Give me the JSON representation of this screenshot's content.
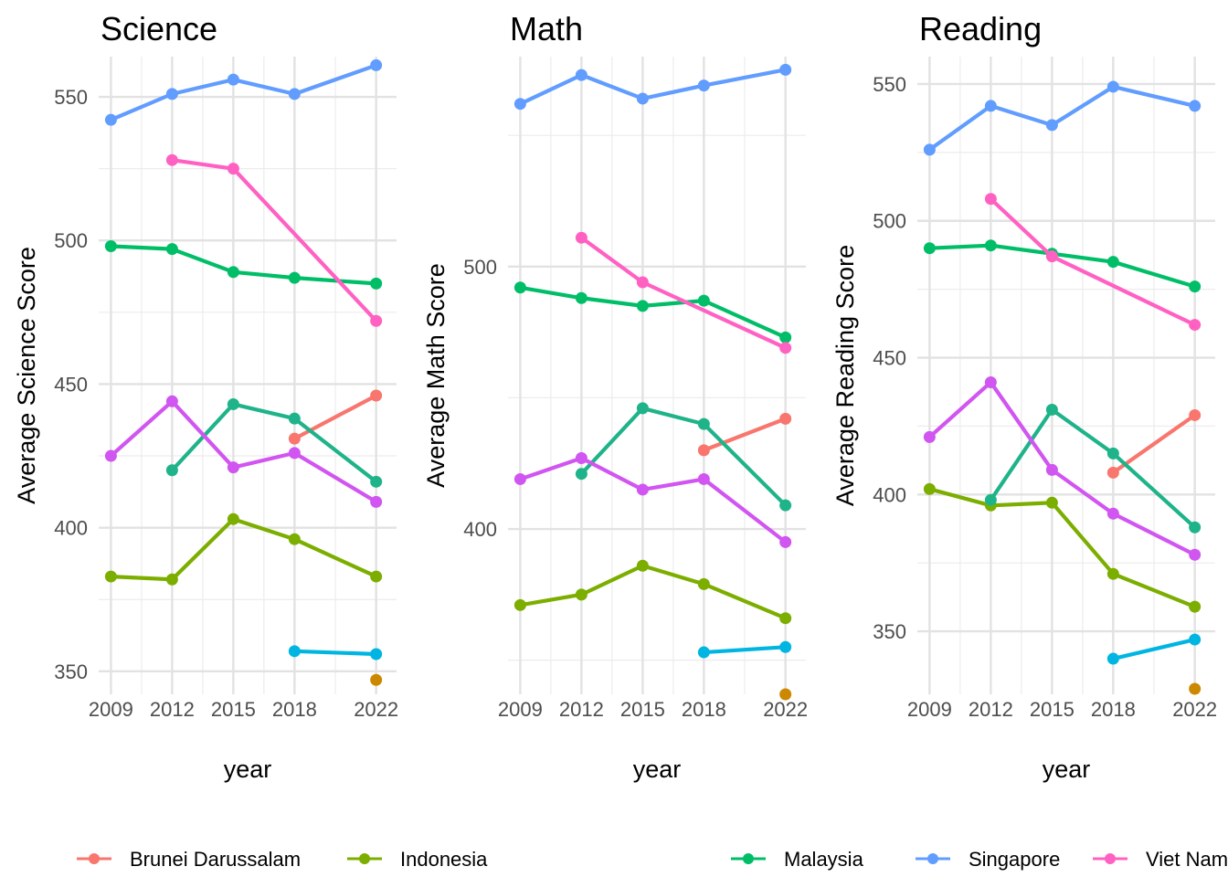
{
  "chart_data": {
    "type": "line",
    "legend_position": "bottom",
    "grid": true,
    "x_ticks": [
      2009,
      2012,
      2015,
      2018,
      2022
    ],
    "countries": [
      {
        "name": "Brunei Darussalam",
        "color": "#F8766D"
      },
      {
        "name": "Indonesia",
        "color": "#7CAE00"
      },
      {
        "name": "Malaysia",
        "color": "#00BE67"
      },
      {
        "name": "Singapore",
        "color": "#619CFF"
      },
      {
        "name": "Viet Nam",
        "color": "#FF61C3"
      }
    ],
    "panels": [
      {
        "title": "Science",
        "xlabel": "year",
        "ylabel": "Average Science Score",
        "xlim": [
          2008.4,
          2023.0
        ],
        "ylim": [
          342,
          564
        ],
        "y_ticks": [
          350,
          400,
          450,
          500,
          550
        ],
        "y_minor": [
          375,
          425,
          475,
          525
        ],
        "series": [
          {
            "color": "#F8766D",
            "x": [
              2018,
              2022
            ],
            "y": [
              431,
              446
            ]
          },
          {
            "color": "#7CAE00",
            "x": [
              2009,
              2012,
              2015,
              2018,
              2022
            ],
            "y": [
              383,
              382,
              403,
              396,
              383
            ]
          },
          {
            "color": "#00BE67",
            "x": [
              2009,
              2012,
              2015,
              2018,
              2022
            ],
            "y": [
              498,
              497,
              489,
              487,
              485
            ]
          },
          {
            "color": "#1FB38A",
            "x": [
              2012,
              2015,
              2018,
              2022
            ],
            "y": [
              420,
              443,
              438,
              416
            ]
          },
          {
            "color": "#00B5E2",
            "x": [
              2018,
              2022
            ],
            "y": [
              357,
              356
            ]
          },
          {
            "color": "#CC8800",
            "x": [
              2022
            ],
            "y": [
              347
            ]
          },
          {
            "color": "#619CFF",
            "x": [
              2009,
              2012,
              2015,
              2018,
              2022
            ],
            "y": [
              542,
              551,
              556,
              551,
              561
            ]
          },
          {
            "color": "#FF61C3",
            "x": [
              2012,
              2015,
              2022
            ],
            "y": [
              528,
              525,
              472
            ]
          },
          {
            "color": "#D155F0",
            "x": [
              2009,
              2012,
              2015,
              2018,
              2022
            ],
            "y": [
              425,
              444,
              421,
              426,
              409
            ]
          }
        ]
      },
      {
        "title": "Math",
        "xlabel": "year",
        "ylabel": "Average Math Score",
        "xlim": [
          2008.4,
          2023.0
        ],
        "ylim": [
          337,
          580
        ],
        "y_ticks": [
          400,
          500
        ],
        "y_minor": [
          350,
          450,
          550
        ],
        "series": [
          {
            "color": "#F8766D",
            "x": [
              2018,
              2022
            ],
            "y": [
              430,
              442
            ]
          },
          {
            "color": "#7CAE00",
            "x": [
              2009,
              2012,
              2015,
              2018,
              2022
            ],
            "y": [
              371,
              375,
              386,
              379,
              366
            ]
          },
          {
            "color": "#00BE67",
            "x": [
              2009,
              2012,
              2015,
              2018,
              2022
            ],
            "y": [
              492,
              488,
              485,
              487,
              473
            ]
          },
          {
            "color": "#1FB38A",
            "x": [
              2012,
              2015,
              2018,
              2022
            ],
            "y": [
              421,
              446,
              440,
              409
            ]
          },
          {
            "color": "#00B5E2",
            "x": [
              2018,
              2022
            ],
            "y": [
              353,
              355
            ]
          },
          {
            "color": "#CC8800",
            "x": [
              2022
            ],
            "y": [
              337
            ]
          },
          {
            "color": "#619CFF",
            "x": [
              2009,
              2012,
              2015,
              2018,
              2022
            ],
            "y": [
              562,
              573,
              564,
              569,
              575
            ]
          },
          {
            "color": "#FF61C3",
            "x": [
              2012,
              2015,
              2022
            ],
            "y": [
              511,
              494,
              469
            ]
          },
          {
            "color": "#D155F0",
            "x": [
              2009,
              2012,
              2015,
              2018,
              2022
            ],
            "y": [
              419,
              427,
              415,
              419,
              395
            ]
          }
        ]
      },
      {
        "title": "Reading",
        "xlabel": "year",
        "ylabel": "Average Reading Score",
        "xlim": [
          2008.4,
          2023.0
        ],
        "ylim": [
          327,
          560
        ],
        "y_ticks": [
          350,
          400,
          450,
          500,
          550
        ],
        "y_minor": [
          375,
          425,
          475,
          525
        ],
        "series": [
          {
            "color": "#F8766D",
            "x": [
              2018,
              2022
            ],
            "y": [
              408,
              429
            ]
          },
          {
            "color": "#7CAE00",
            "x": [
              2009,
              2012,
              2015,
              2018,
              2022
            ],
            "y": [
              402,
              396,
              397,
              371,
              359
            ]
          },
          {
            "color": "#00BE67",
            "x": [
              2009,
              2012,
              2015,
              2018,
              2022
            ],
            "y": [
              490,
              491,
              488,
              485,
              476
            ]
          },
          {
            "color": "#1FB38A",
            "x": [
              2012,
              2015,
              2018,
              2022
            ],
            "y": [
              398,
              431,
              415,
              388
            ]
          },
          {
            "color": "#00B5E2",
            "x": [
              2018,
              2022
            ],
            "y": [
              340,
              347
            ]
          },
          {
            "color": "#CC8800",
            "x": [
              2022
            ],
            "y": [
              329
            ]
          },
          {
            "color": "#619CFF",
            "x": [
              2009,
              2012,
              2015,
              2018,
              2022
            ],
            "y": [
              526,
              542,
              535,
              549,
              542
            ]
          },
          {
            "color": "#FF61C3",
            "x": [
              2012,
              2015,
              2022
            ],
            "y": [
              508,
              487,
              462
            ]
          },
          {
            "color": "#D155F0",
            "x": [
              2009,
              2012,
              2015,
              2018,
              2022
            ],
            "y": [
              421,
              441,
              409,
              393,
              378
            ]
          }
        ]
      }
    ]
  }
}
